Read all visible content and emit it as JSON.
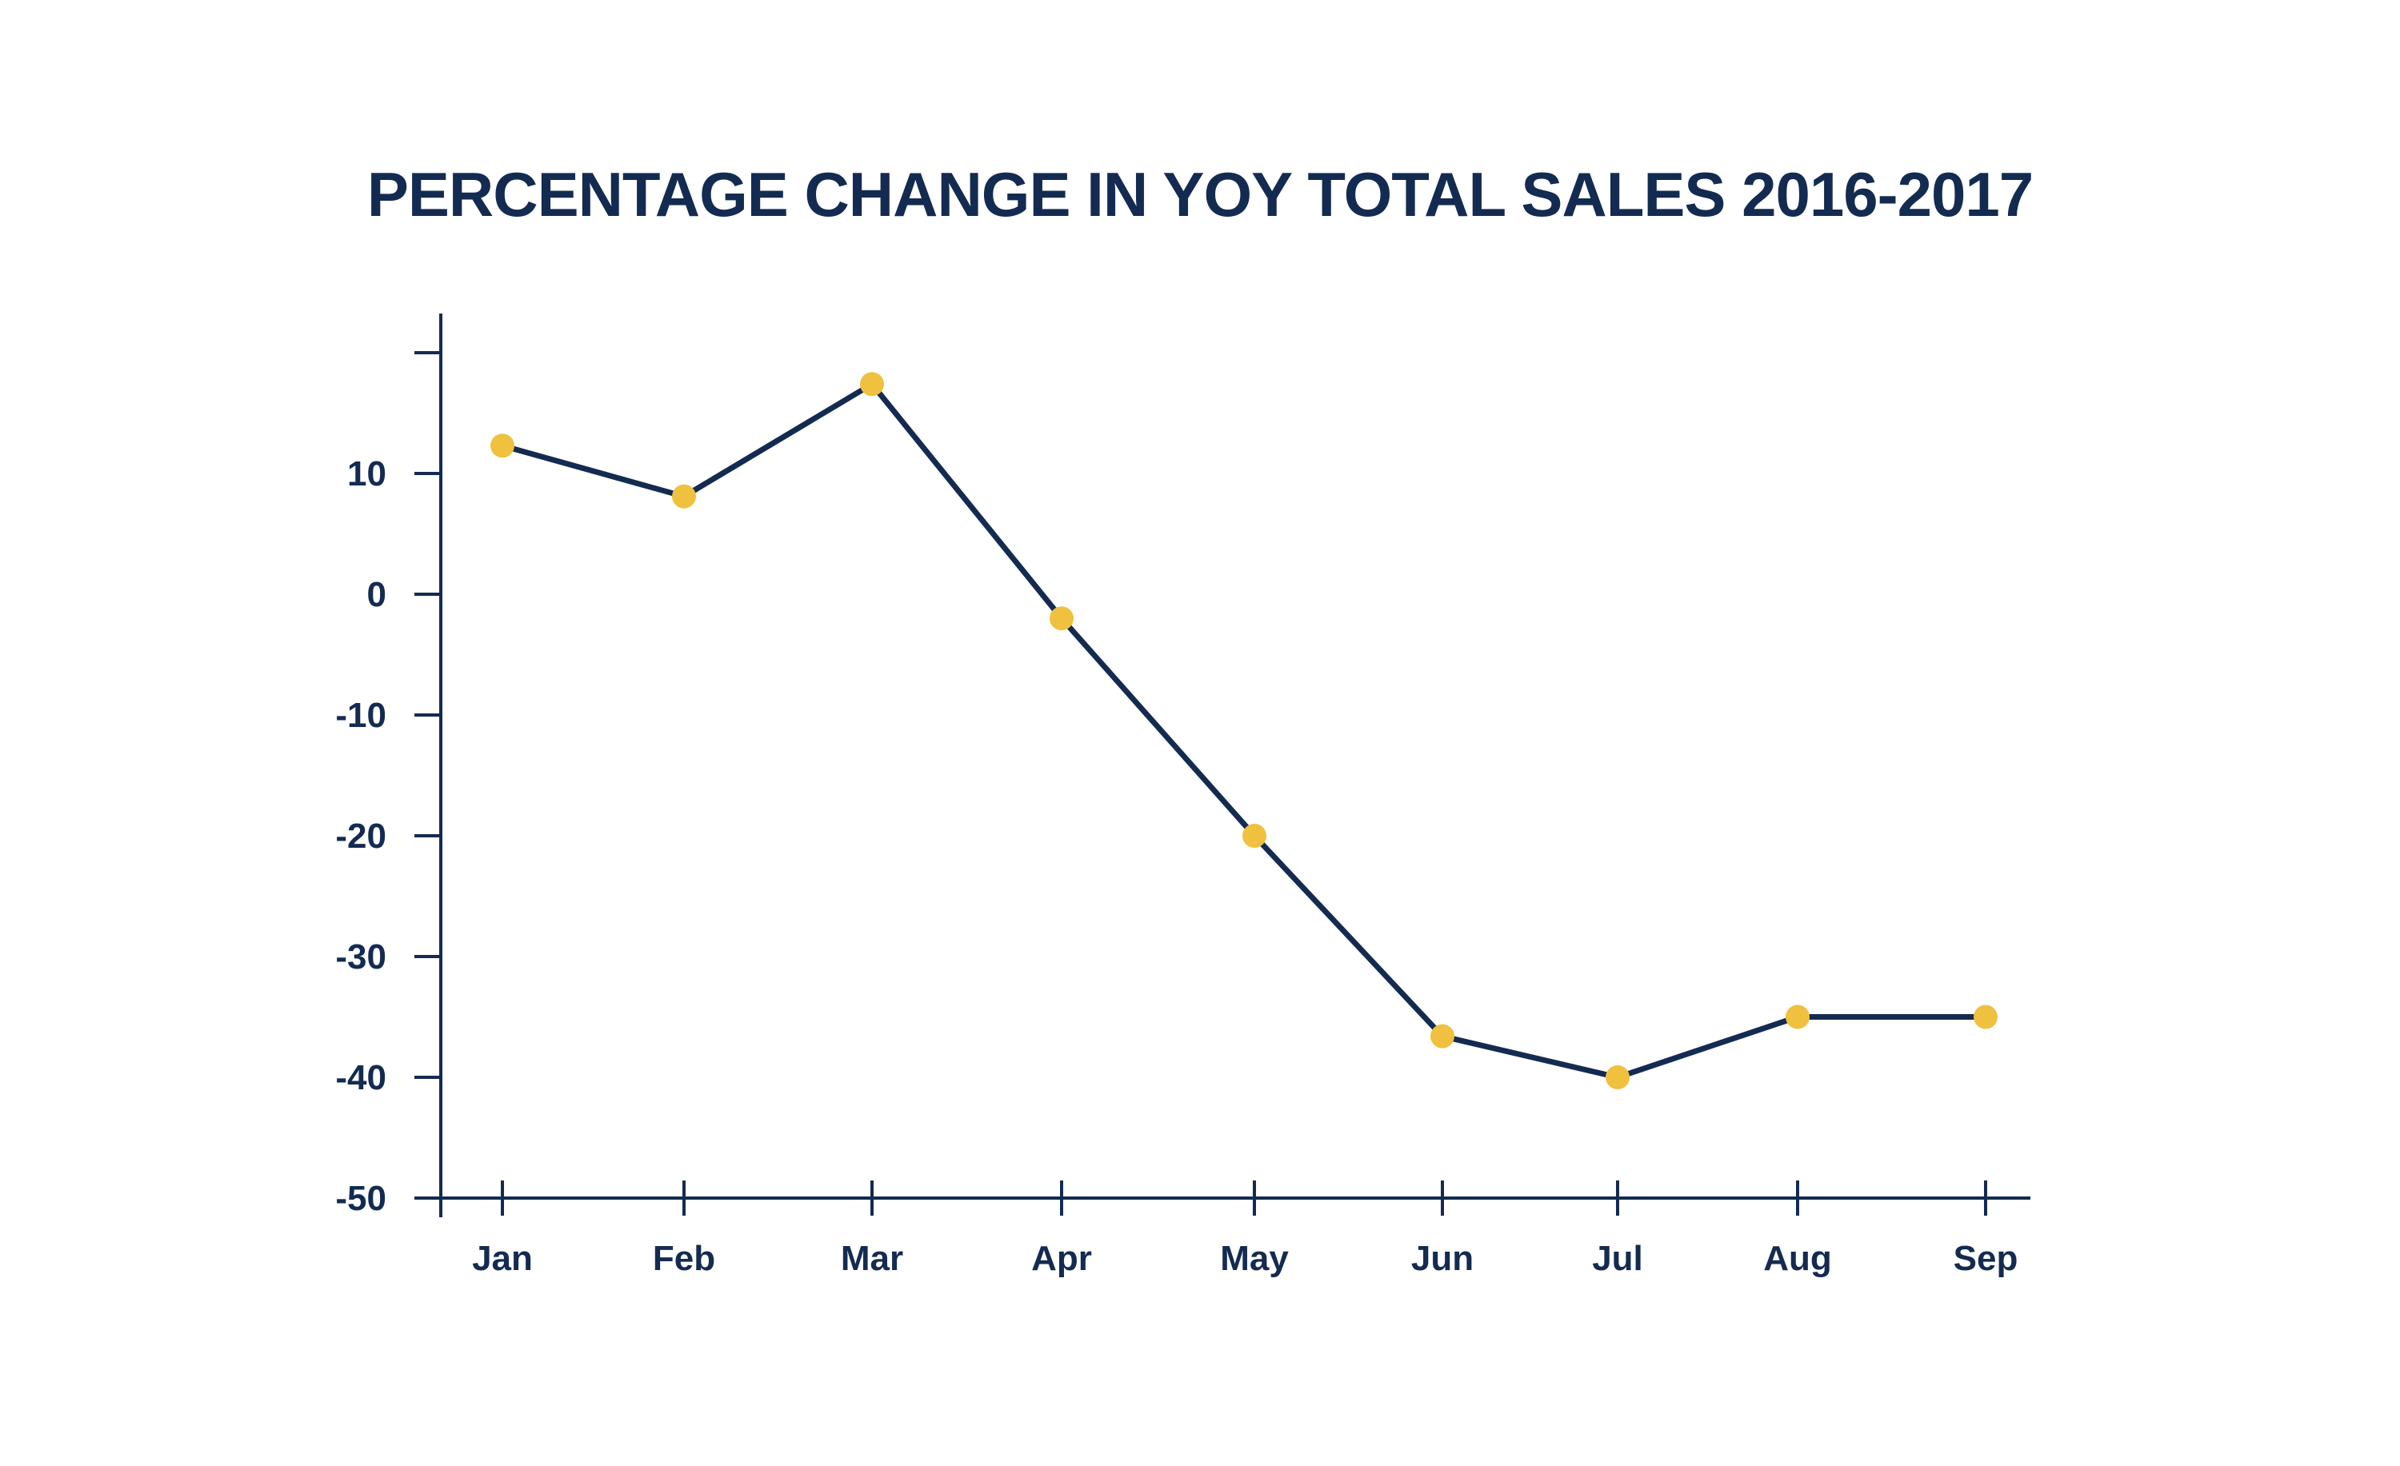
{
  "chart_data": {
    "type": "line",
    "title": "PERCENTAGE CHANGE IN YOY TOTAL SALES 2016-2017",
    "xlabel": "",
    "ylabel": "",
    "categories": [
      "Jan",
      "Feb",
      "Mar",
      "Apr",
      "May",
      "Jun",
      "Jul",
      "Aug",
      "Sep"
    ],
    "series": [
      {
        "values": [
          12.3,
          8.1,
          17.4,
          -2.0,
          -20.0,
          -36.6,
          -40.0,
          -35.0,
          -35.0
        ]
      }
    ],
    "y_ticks": [
      "10",
      "0",
      "-10",
      "-20",
      "-30",
      "-40",
      "-50"
    ],
    "ylim": [
      -50,
      20
    ],
    "grid": false,
    "legend": "none",
    "colors": {
      "line": "#142b51",
      "marker": "#f0c13f",
      "axis": "#142b51",
      "text": "#142b51"
    }
  }
}
